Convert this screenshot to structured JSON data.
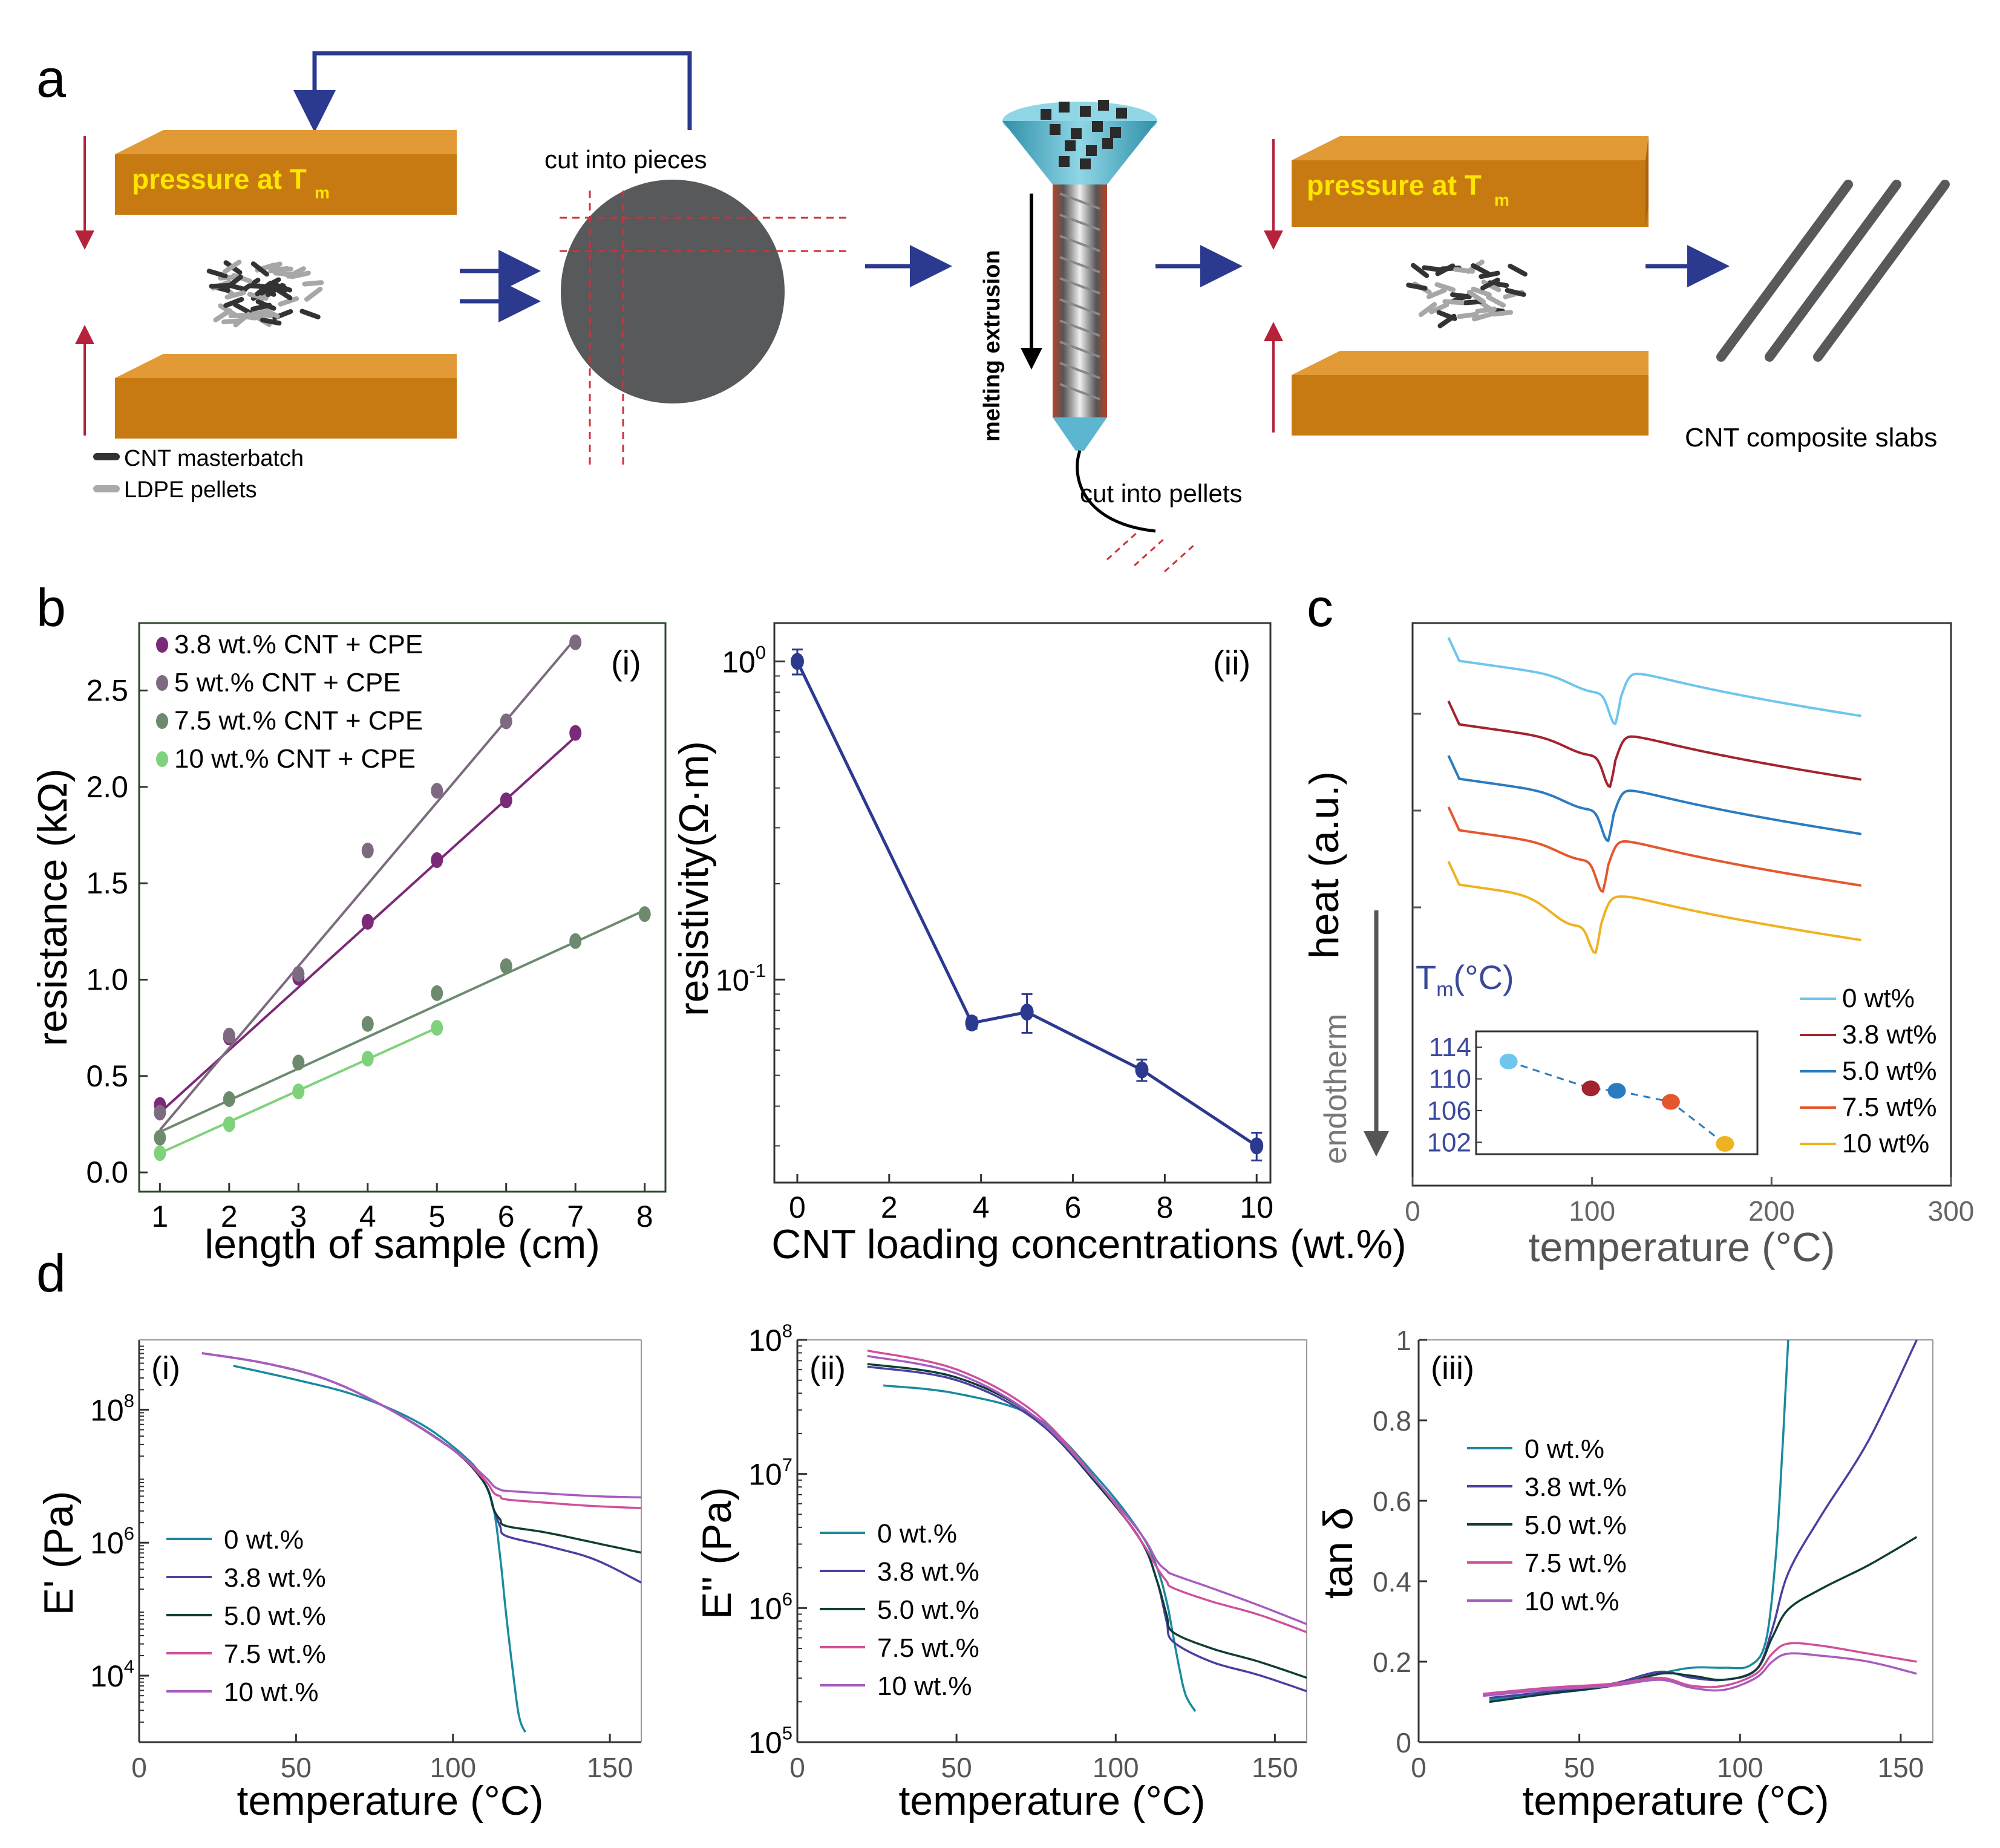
{
  "panels": {
    "a": "a",
    "b": "b",
    "c": "c",
    "d": "d"
  },
  "schematic": {
    "press_label": "pressure at T",
    "press_sub": "m",
    "cnt_masterbatch": "CNT masterbatch",
    "ldpe_pellets": "LDPE pellets",
    "cut_pieces": "cut into pieces",
    "melting_extrusion": "melting extrusion",
    "cut_pellets": "cut into  pellets",
    "slabs": "CNT composite slabs"
  },
  "colors": {
    "press_top": "#d98a1e",
    "press_front": "#c77a12",
    "press_side": "#a8640c",
    "blue_arrow": "#2b3a8f",
    "red_arrow": "#b5233a",
    "disk": "#58595b"
  },
  "chart_data": [
    {
      "id": "b-i",
      "type": "scatter",
      "tag": "(i)",
      "xlabel": "length of sample (cm)",
      "ylabel": "resistance (kΩ)",
      "xlim": [
        0.7,
        8.3
      ],
      "ylim": [
        -0.1,
        2.85
      ],
      "xticks": [
        1,
        2,
        3,
        4,
        5,
        6,
        7,
        8
      ],
      "yticks": [
        0.0,
        0.5,
        1.0,
        1.5,
        2.0,
        2.5
      ],
      "ytick_labels": [
        "0.0",
        "0.5",
        "1.0",
        "1.5",
        "2.0",
        "2.5"
      ],
      "legend_position": "top-left",
      "series": [
        {
          "name": "3.8 wt.% CNT + CPE",
          "color": "#7b2a78",
          "x": [
            1,
            2,
            3,
            4,
            5,
            6,
            7
          ],
          "y": [
            0.35,
            0.7,
            1.01,
            1.3,
            1.62,
            1.93,
            2.28
          ],
          "fit": [
            [
              1,
              0.31
            ],
            [
              7,
              2.26
            ]
          ]
        },
        {
          "name": "5 wt.% CNT + CPE",
          "color": "#7d6a80",
          "x": [
            1,
            2,
            3,
            4,
            5,
            6,
            7
          ],
          "y": [
            0.31,
            0.71,
            1.03,
            1.67,
            1.98,
            2.34,
            2.75
          ],
          "fit": [
            [
              1,
              0.22
            ],
            [
              7,
              2.77
            ]
          ]
        },
        {
          "name": "7.5 wt.% CNT + CPE",
          "color": "#6d8a6e",
          "x": [
            1,
            2,
            3,
            4,
            5,
            6,
            7,
            8
          ],
          "y": [
            0.18,
            0.38,
            0.57,
            0.77,
            0.93,
            1.07,
            1.2,
            1.34
          ],
          "fit": [
            [
              1,
              0.21
            ],
            [
              8,
              1.36
            ]
          ]
        },
        {
          "name": "10 wt.% CNT + CPE",
          "color": "#7fd27b",
          "x": [
            1,
            2,
            3,
            4,
            5
          ],
          "y": [
            0.1,
            0.25,
            0.42,
            0.59,
            0.75
          ],
          "fit": [
            [
              1,
              0.1
            ],
            [
              5,
              0.75
            ]
          ]
        }
      ]
    },
    {
      "id": "b-ii",
      "type": "line",
      "tag": "(ii)",
      "xlabel": "CNT loading concentrations (wt.%)",
      "ylabel": "resistivity(Ω·m)",
      "yscale": "log",
      "xlim": [
        -0.5,
        10.3
      ],
      "ylim": [
        0.023,
        1.32
      ],
      "xticks": [
        0,
        2,
        4,
        6,
        8,
        10
      ],
      "yticks": [
        {
          "v": 1,
          "base": "10",
          "exp": "0"
        },
        {
          "v": 0.1,
          "base": "10",
          "exp": "-1"
        }
      ],
      "color": "#2b3a8f",
      "x": [
        0,
        3.8,
        5,
        7.5,
        10
      ],
      "y": [
        1.0,
        0.073,
        0.079,
        0.052,
        0.03
      ],
      "err": [
        0.09,
        0.003,
        0.011,
        0.004,
        0.003
      ]
    },
    {
      "id": "c",
      "type": "line",
      "xlabel": "temperature (°C)",
      "ylabel": "heat (a.u.)",
      "arrow_label": "endotherm",
      "xlim": [
        0,
        300
      ],
      "xticks": [
        0,
        100,
        200,
        300
      ],
      "legend_position": "bottom-right",
      "series": [
        {
          "name": "0 wt%",
          "color": "#6ec6ec",
          "offset": 0
        },
        {
          "name": "3.8 wt%",
          "color": "#a3232e",
          "offset": 1
        },
        {
          "name": "5.0 wt%",
          "color": "#2b7bc0",
          "offset": 2
        },
        {
          "name": "7.5 wt%",
          "color": "#e4572e",
          "offset": 3
        },
        {
          "name": "10 wt%",
          "color": "#eeb322",
          "offset": 4
        }
      ],
      "inset": {
        "title": "T",
        "title_sub": "m",
        "title_unit": "(°C)",
        "yticks": [
          114,
          110,
          106,
          102
        ],
        "ylim": [
          100.5,
          116
        ],
        "x": [
          0,
          3.8,
          5.0,
          7.5,
          10
        ],
        "y": [
          112.2,
          108.8,
          108.5,
          107.1,
          101.8
        ],
        "colors": [
          "#6ec6ec",
          "#a3232e",
          "#2b7bc0",
          "#e4572e",
          "#eeb322"
        ]
      }
    },
    {
      "id": "d-i",
      "type": "line",
      "tag": "(i)",
      "xlabel": "temperature (°C)",
      "ylabel": "E' (Pa)",
      "yscale": "log",
      "xlim": [
        0,
        160
      ],
      "xticks": [
        0,
        50,
        100,
        150
      ],
      "yticks": [
        {
          "exp": 8
        },
        {
          "exp": 6
        },
        {
          "exp": 4
        }
      ],
      "series": [
        {
          "name": "0 wt.%",
          "color": "#1a8a9e",
          "x": [
            30,
            50,
            70,
            90,
            105,
            110,
            113,
            115,
            117,
            119,
            121,
            123
          ],
          "y": [
            8.66,
            8.45,
            8.2,
            7.78,
            7.24,
            6.9,
            6.5,
            5.8,
            4.9,
            4.1,
            3.4,
            3.15
          ]
        },
        {
          "name": "3.8 wt.%",
          "color": "#4a3fa0",
          "x": [
            20,
            40,
            60,
            80,
            100,
            110,
            113,
            115,
            117,
            130,
            145,
            160
          ],
          "y": [
            8.85,
            8.7,
            8.45,
            8.0,
            7.4,
            6.9,
            6.5,
            6.25,
            6.1,
            5.95,
            5.75,
            5.4
          ]
        },
        {
          "name": "5.0 wt.%",
          "color": "#0f3d36",
          "x": [
            20,
            40,
            60,
            80,
            100,
            110,
            113,
            115,
            117,
            130,
            145,
            160
          ],
          "y": [
            8.85,
            8.7,
            8.45,
            8.0,
            7.4,
            6.9,
            6.5,
            6.35,
            6.25,
            6.15,
            6.0,
            5.85
          ]
        },
        {
          "name": "7.5 wt.%",
          "color": "#d0509a",
          "x": [
            20,
            40,
            60,
            80,
            100,
            110,
            113,
            115,
            117,
            130,
            145,
            160
          ],
          "y": [
            8.85,
            8.7,
            8.45,
            8.0,
            7.4,
            6.95,
            6.75,
            6.7,
            6.65,
            6.6,
            6.55,
            6.52
          ]
        },
        {
          "name": "10 wt.%",
          "color": "#a85bbf",
          "x": [
            20,
            40,
            60,
            80,
            100,
            110,
            113,
            115,
            117,
            130,
            145,
            160
          ],
          "y": [
            8.85,
            8.7,
            8.45,
            8.0,
            7.4,
            7.0,
            6.85,
            6.8,
            6.78,
            6.74,
            6.7,
            6.68
          ]
        }
      ]
    },
    {
      "id": "d-ii",
      "type": "line",
      "tag": "(ii)",
      "xlabel": "temperature (°C)",
      "ylabel": "E'' (Pa)",
      "yscale": "log",
      "xlim": [
        0,
        160
      ],
      "xticks": [
        0,
        50,
        100,
        150
      ],
      "ylim": [
        5,
        8
      ],
      "yticks": [
        {
          "exp": 8
        },
        {
          "exp": 7
        },
        {
          "exp": 6
        },
        {
          "exp": 5
        }
      ],
      "series": [
        {
          "name": "0 wt.%",
          "color": "#1a8a9e",
          "x": [
            27,
            50,
            75,
            95,
            108,
            113,
            116,
            118,
            120,
            122,
            125
          ],
          "y": [
            7.66,
            7.6,
            7.42,
            6.95,
            6.55,
            6.3,
            6.05,
            5.8,
            5.55,
            5.35,
            5.23
          ]
        },
        {
          "name": "3.8 wt.%",
          "color": "#4a3fa0",
          "x": [
            22,
            50,
            75,
            95,
            108,
            113,
            116,
            118,
            130,
            145,
            160
          ],
          "y": [
            7.8,
            7.7,
            7.4,
            6.9,
            6.5,
            6.2,
            5.9,
            5.75,
            5.6,
            5.5,
            5.38
          ]
        },
        {
          "name": "5.0 wt.%",
          "color": "#0f3d36",
          "x": [
            22,
            50,
            75,
            95,
            108,
            113,
            116,
            118,
            130,
            145,
            160
          ],
          "y": [
            7.82,
            7.72,
            7.42,
            6.9,
            6.5,
            6.2,
            5.95,
            5.82,
            5.7,
            5.6,
            5.48
          ]
        },
        {
          "name": "7.5 wt.%",
          "color": "#d0509a",
          "x": [
            22,
            50,
            75,
            95,
            108,
            113,
            116,
            118,
            130,
            145,
            160
          ],
          "y": [
            7.92,
            7.78,
            7.45,
            6.92,
            6.5,
            6.3,
            6.2,
            6.15,
            6.05,
            5.95,
            5.82
          ]
        },
        {
          "name": "10 wt.%",
          "color": "#a85bbf",
          "x": [
            22,
            50,
            75,
            95,
            108,
            113,
            116,
            118,
            130,
            145,
            160
          ],
          "y": [
            7.88,
            7.75,
            7.42,
            6.92,
            6.55,
            6.35,
            6.28,
            6.25,
            6.15,
            6.02,
            5.88
          ]
        }
      ]
    },
    {
      "id": "d-iii",
      "type": "line",
      "tag": "(iii)",
      "xlabel": "temperature (°C)",
      "ylabel": "tan δ",
      "xlim": [
        0,
        160
      ],
      "ylim": [
        0,
        1
      ],
      "xticks": [
        0,
        50,
        100,
        150
      ],
      "yticks": [
        0,
        0.2,
        0.4,
        0.6,
        0.8,
        1
      ],
      "ytick_labels": [
        "0",
        "0.2",
        "0.4",
        "0.6",
        "0.8",
        "1"
      ],
      "series": [
        {
          "name": "0 wt.%",
          "color": "#1a8a9e",
          "x": [
            22,
            40,
            60,
            75,
            85,
            95,
            103,
            108,
            111,
            113,
            114,
            115
          ],
          "y": [
            0.105,
            0.12,
            0.14,
            0.17,
            0.185,
            0.185,
            0.19,
            0.25,
            0.45,
            0.7,
            0.85,
            1.0
          ]
        },
        {
          "name": "3.8 wt.%",
          "color": "#4a3fa0",
          "x": [
            22,
            40,
            60,
            75,
            85,
            95,
            105,
            110,
            115,
            125,
            140,
            155
          ],
          "y": [
            0.11,
            0.125,
            0.145,
            0.175,
            0.16,
            0.155,
            0.18,
            0.28,
            0.42,
            0.56,
            0.75,
            1.0
          ]
        },
        {
          "name": "5.0 wt.%",
          "color": "#0f3d36",
          "x": [
            22,
            40,
            60,
            75,
            85,
            95,
            105,
            110,
            115,
            125,
            140,
            155
          ],
          "y": [
            0.1,
            0.12,
            0.14,
            0.17,
            0.165,
            0.155,
            0.18,
            0.26,
            0.33,
            0.38,
            0.44,
            0.51
          ]
        },
        {
          "name": "7.5 wt.%",
          "color": "#d0509a",
          "x": [
            20,
            40,
            60,
            75,
            85,
            95,
            105,
            110,
            115,
            125,
            140,
            155
          ],
          "y": [
            0.12,
            0.135,
            0.145,
            0.16,
            0.14,
            0.14,
            0.17,
            0.22,
            0.245,
            0.24,
            0.22,
            0.2
          ]
        },
        {
          "name": "10 wt.%",
          "color": "#a85bbf",
          "x": [
            20,
            40,
            60,
            75,
            85,
            95,
            105,
            110,
            115,
            125,
            140,
            155
          ],
          "y": [
            0.115,
            0.13,
            0.14,
            0.155,
            0.135,
            0.13,
            0.16,
            0.2,
            0.22,
            0.215,
            0.2,
            0.17
          ]
        }
      ]
    }
  ]
}
